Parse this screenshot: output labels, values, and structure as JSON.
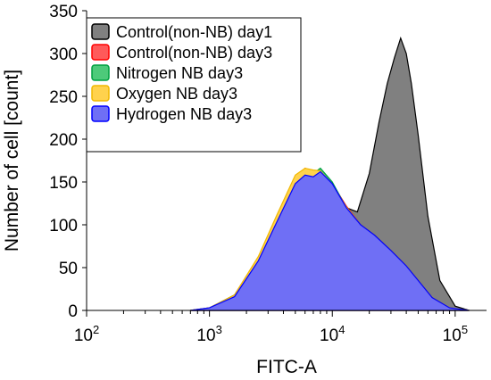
{
  "chart_data": {
    "type": "area",
    "title": "",
    "xlabel": "FITC-A",
    "ylabel": "Number of cell [count]",
    "xscale": "log",
    "xlim": [
      100,
      180000
    ],
    "ylim": [
      0,
      350
    ],
    "x_ticks": [
      {
        "value": 100,
        "base": "10",
        "exp": "2"
      },
      {
        "value": 1000,
        "base": "10",
        "exp": "3"
      },
      {
        "value": 10000,
        "base": "10",
        "exp": "4"
      },
      {
        "value": 100000,
        "base": "10",
        "exp": "5"
      }
    ],
    "y_ticks": [
      0,
      50,
      100,
      150,
      200,
      250,
      300,
      350
    ],
    "grid": false,
    "legend_position": "top-left",
    "series": [
      {
        "name": "Control(non-NB) day1",
        "fill": "#808080",
        "stroke": "#000000",
        "x": [
          700,
          1000,
          1600,
          2500,
          3500,
          5000,
          6500,
          8000,
          10000,
          13000,
          16000,
          20000,
          24000,
          28000,
          32000,
          36000,
          40000,
          44000,
          50000,
          60000,
          75000,
          100000,
          130000
        ],
        "y": [
          0,
          2,
          15,
          55,
          100,
          148,
          163,
          157,
          142,
          120,
          115,
          160,
          220,
          265,
          295,
          318,
          300,
          265,
          205,
          110,
          35,
          5,
          0
        ]
      },
      {
        "name": "Control(non-NB) day3",
        "fill": "#ff5a5a",
        "stroke": "#ff0000",
        "x": [
          700,
          1000,
          1600,
          2500,
          3500,
          5000,
          6000,
          7000,
          8000,
          10000,
          13000,
          17000,
          22000,
          30000,
          40000,
          50000,
          65000,
          90000,
          130000
        ],
        "y": [
          0,
          3,
          18,
          62,
          108,
          155,
          166,
          162,
          164,
          148,
          122,
          100,
          88,
          70,
          52,
          35,
          15,
          3,
          0
        ]
      },
      {
        "name": "Nitrogen NB day3",
        "fill": "#4dca7a",
        "stroke": "#00a040",
        "x": [
          700,
          1000,
          1600,
          2500,
          3500,
          5000,
          6000,
          7000,
          8000,
          10000,
          13000,
          17000,
          22000,
          30000,
          40000,
          50000,
          65000,
          90000,
          130000
        ],
        "y": [
          0,
          3,
          18,
          60,
          106,
          152,
          163,
          160,
          166,
          150,
          120,
          100,
          88,
          70,
          52,
          35,
          15,
          3,
          0
        ]
      },
      {
        "name": "Oxygen NB day3",
        "fill": "#ffd24d",
        "stroke": "#f0b800",
        "x": [
          700,
          1000,
          1600,
          2500,
          3500,
          5000,
          6000,
          7000,
          8000,
          10000,
          13000,
          17000,
          22000,
          30000,
          40000,
          50000,
          65000,
          90000,
          130000
        ],
        "y": [
          0,
          3,
          18,
          63,
          110,
          158,
          166,
          164,
          163,
          147,
          121,
          100,
          88,
          70,
          52,
          35,
          15,
          3,
          0
        ]
      },
      {
        "name": "Hydrogen NB day3",
        "fill": "#6f6ff5",
        "stroke": "#0000ff",
        "x": [
          700,
          1000,
          1600,
          2500,
          3500,
          5000,
          6000,
          7000,
          8000,
          10000,
          13000,
          17000,
          22000,
          30000,
          40000,
          50000,
          65000,
          90000,
          130000
        ],
        "y": [
          0,
          3,
          16,
          58,
          102,
          148,
          158,
          156,
          162,
          148,
          120,
          100,
          88,
          70,
          52,
          35,
          15,
          3,
          0
        ]
      }
    ]
  }
}
